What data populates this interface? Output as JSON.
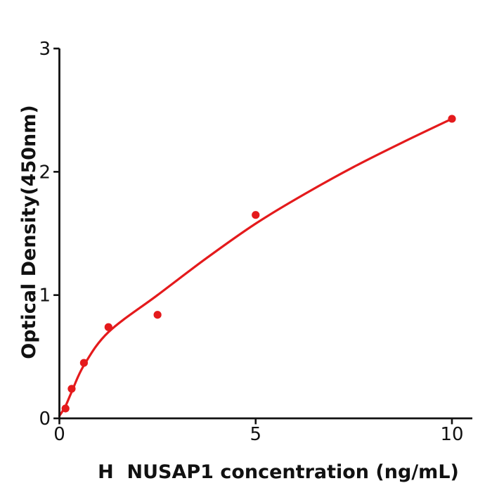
{
  "chart_data": {
    "type": "scatter",
    "title": "",
    "xlabel": "H  NUSAP1 concentration (ng/mL)",
    "ylabel": "Optical Density(450nm)",
    "xlim": [
      0,
      10.52
    ],
    "ylim": [
      0,
      3
    ],
    "x_ticks": [
      0,
      5,
      10
    ],
    "x_tick_labels": [
      "0",
      "5",
      "10"
    ],
    "y_ticks": [
      0,
      1,
      2,
      3
    ],
    "y_tick_labels": [
      "0",
      "1",
      "2",
      "3"
    ],
    "grid": false,
    "legend": "none",
    "point_color": "#e41a1c",
    "curve_color": "#e41a1c",
    "axis_color": "#111111",
    "series": [
      {
        "name": "standard-points",
        "type": "scatter",
        "x": [
          0.156,
          0.3125,
          0.625,
          1.25,
          2.5,
          5,
          10
        ],
        "y": [
          0.08,
          0.24,
          0.45,
          0.74,
          0.84,
          1.65,
          2.43
        ]
      },
      {
        "name": "fitted-curve",
        "type": "line",
        "x": [
          0.0,
          0.156,
          0.3125,
          0.625,
          1.25,
          2.5,
          3.75,
          5.0,
          6.25,
          7.5,
          8.75,
          10.0
        ],
        "y": [
          0.02,
          0.1,
          0.215,
          0.43,
          0.7,
          1.0,
          1.3,
          1.58,
          1.82,
          2.04,
          2.24,
          2.43
        ]
      }
    ]
  }
}
